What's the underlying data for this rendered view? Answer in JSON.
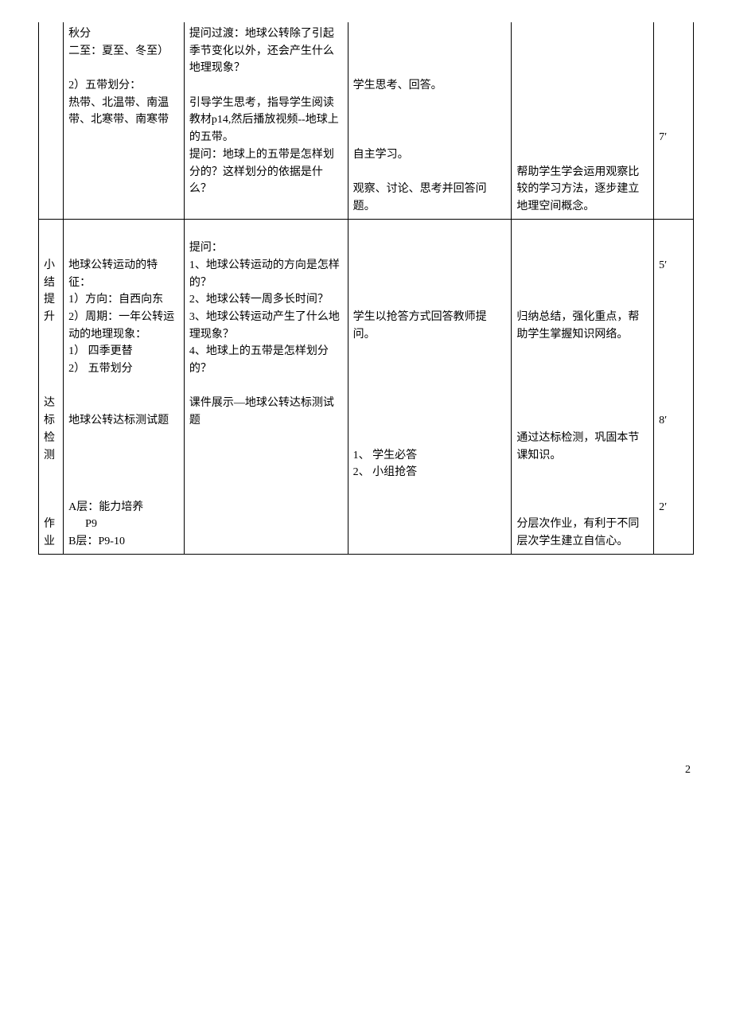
{
  "row1": {
    "col0_lines": [],
    "col1": "秋分\n二至：夏至、冬至）\n\n2）五带划分：\n热带、北温带、南温带、北寒带、南寒带",
    "col2": "提问过渡：地球公转除了引起季节变化以外，还会产生什么地理现象？\n\n引导学生思考，指导学生阅读教材p14,然后播放视频--地球上的五带。\n提问：地球上的五带是怎样划分的？这样划分的依据是什么？",
    "col3": "\n\n\n学生思考、回答。\n\n\n\n自主学习。\n\n观察、讨论、思考并回答问题。",
    "col4": "\n\n\n\n\n\n\n\n帮助学生学会运用观察比较的学习方法，逐步建立地理空间概念。",
    "col5": "\n\n\n\n\n\n7′"
  },
  "row2": {
    "col0_lines": [
      "",
      "",
      "小",
      "结",
      "提",
      "升",
      "",
      "",
      "",
      "",
      "达",
      "标",
      "检",
      "测",
      "",
      "",
      "",
      "作",
      "业"
    ],
    "col1": "\n\n地球公转运动的特征：\n1）方向：自西向东\n2）周期：一年公转运动的地理现象：\n1） 四季更替\n2） 五带划分\n\n\n地球公转达标测试题\n\n\n\n\nA层：能力培养\n      P9\nB层：P9-10",
    "col2": "\n提问：\n1、地球公转运动的方向是怎样的？\n2、地球公转一周多长时间？\n3、地球公转运动产生了什么地理现象？\n4、地球上的五带是怎样划分的？\n\n课件展示—地球公转达标测试题",
    "col3": "\n\n\n\n\n学生以抢答方式回答教师提问。\n\n\n\n\n\n\n1、 学生必答\n2、 小组抢答",
    "col4": "\n\n\n\n\n归纳总结，强化重点，帮助学生掌握知识网络。\n\n\n\n\n\n通过达标检测，巩固本节课知识。\n\n\n\n分层次作业，有利于不同层次学生建立自信心。",
    "col5": "\n\n5′\n\n\n\n\n\n\n\n\n8′\n\n\n\n\n2′"
  },
  "footer_page": "2"
}
